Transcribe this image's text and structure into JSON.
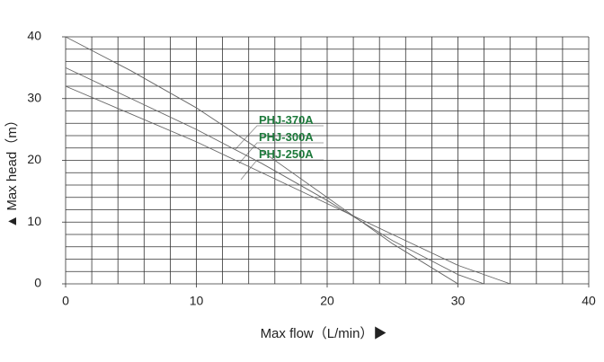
{
  "chart_data": {
    "type": "line",
    "x_label": "Max flow（L/min）▶",
    "y_label": "▲ Max head（m）",
    "xlim": [
      0,
      40
    ],
    "ylim": [
      0,
      40
    ],
    "xticks": [
      0,
      10,
      20,
      30,
      40
    ],
    "yticks": [
      0,
      10,
      20,
      30,
      40
    ],
    "grid": true,
    "grid_step": 2,
    "series": [
      {
        "name": "PHJ-370A",
        "color": "#666666",
        "x": [
          0,
          5,
          10,
          15,
          20,
          25,
          30
        ],
        "values": [
          40,
          34.5,
          28.5,
          21.5,
          14,
          6.5,
          0
        ]
      },
      {
        "name": "PHJ-300A",
        "color": "#666666",
        "x": [
          0,
          5,
          10,
          15,
          20,
          25,
          30,
          32
        ],
        "values": [
          35,
          30,
          25,
          19.5,
          13.5,
          7,
          1.5,
          0
        ]
      },
      {
        "name": "PHJ-250A",
        "color": "#666666",
        "x": [
          0,
          5,
          10,
          15,
          20,
          25,
          30,
          34
        ],
        "values": [
          32,
          27.5,
          23,
          18,
          13,
          8,
          3,
          0
        ]
      }
    ]
  }
}
